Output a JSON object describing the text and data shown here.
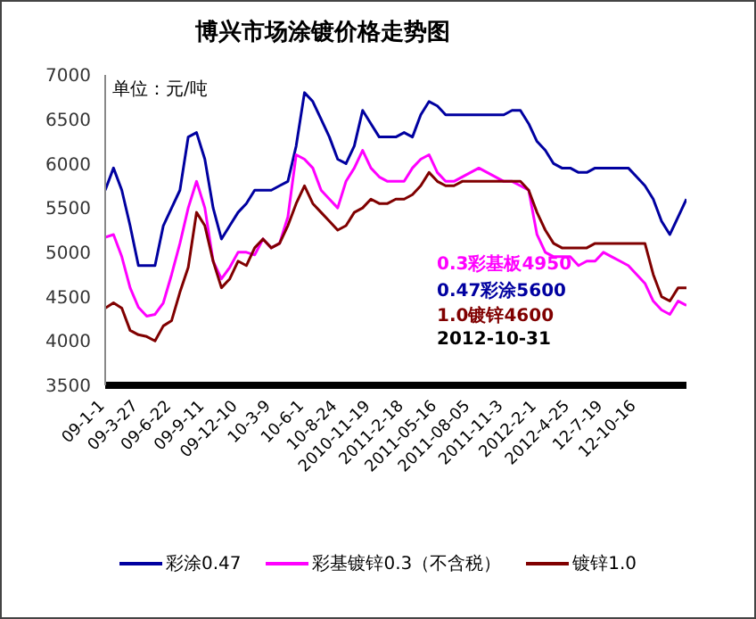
{
  "chart_data": {
    "type": "line",
    "title": "博兴市场涂镀价格走势图",
    "ylabel": "单位：元/吨",
    "categories": [
      "09-1-1",
      null,
      null,
      null,
      "09-3-27",
      null,
      null,
      null,
      "09-6-22",
      null,
      null,
      null,
      "09-9-11",
      null,
      null,
      null,
      "09-12-10",
      null,
      null,
      null,
      "10-3-9",
      null,
      null,
      null,
      "10-6-1",
      null,
      null,
      null,
      "10-8-24",
      null,
      null,
      null,
      "2010-11-19",
      null,
      null,
      null,
      "2011-2-18",
      null,
      null,
      null,
      "2011-05-16",
      null,
      null,
      null,
      "2011-08-05",
      null,
      null,
      null,
      "2011-11-3",
      null,
      null,
      null,
      "2012-2-1",
      null,
      null,
      null,
      "2012-4-25",
      null,
      null,
      null,
      "12-7-19",
      null,
      null,
      null,
      "12-10-16",
      null,
      null,
      null,
      null,
      null,
      null
    ],
    "series": [
      {
        "name": "彩涂0.47",
        "color": "#0000a0",
        "values": [
          5700,
          5950,
          5700,
          5300,
          4850,
          4850,
          4850,
          5300,
          5500,
          5700,
          6300,
          6350,
          6050,
          5500,
          5150,
          5300,
          5450,
          5550,
          5700,
          5700,
          5700,
          5750,
          5800,
          6200,
          6800,
          6700,
          6500,
          6300,
          6050,
          6000,
          6200,
          6600,
          6450,
          6300,
          6300,
          6300,
          6350,
          6300,
          6550,
          6700,
          6650,
          6550,
          6550,
          6550,
          6550,
          6550,
          6550,
          6550,
          6550,
          6600,
          6600,
          6450,
          6250,
          6150,
          6000,
          5950,
          5950,
          5900,
          5900,
          5950,
          5950,
          5950,
          5950,
          5950,
          5850,
          5750,
          5600,
          5350,
          5200,
          5400,
          5600
        ]
      },
      {
        "name": "彩基镀锌0.3（不含税）",
        "color": "#ff00ff",
        "values": [
          5170,
          5200,
          4950,
          4600,
          4380,
          4280,
          4300,
          4430,
          4750,
          5100,
          5500,
          5800,
          5500,
          4900,
          4700,
          4830,
          5000,
          5000,
          4970,
          5150,
          5050,
          5100,
          5400,
          6100,
          6050,
          5950,
          5700,
          5600,
          5500,
          5800,
          5950,
          6150,
          5950,
          5850,
          5800,
          5800,
          5800,
          5950,
          6050,
          6100,
          5900,
          5800,
          5800,
          5850,
          5900,
          5950,
          5900,
          5850,
          5800,
          5800,
          5750,
          5700,
          5200,
          5000,
          4950,
          4950,
          4950,
          4850,
          4900,
          4900,
          5000,
          4950,
          4900,
          4850,
          4750,
          4650,
          4450,
          4350,
          4300,
          4450,
          4400
        ]
      },
      {
        "name": "镀锌1.0",
        "color": "#800000",
        "values": [
          4370,
          4430,
          4370,
          4120,
          4070,
          4050,
          4000,
          4170,
          4230,
          4550,
          4830,
          5450,
          5300,
          4900,
          4600,
          4700,
          4900,
          4850,
          5050,
          5150,
          5050,
          5100,
          5300,
          5550,
          5750,
          5550,
          5450,
          5350,
          5250,
          5300,
          5450,
          5500,
          5600,
          5550,
          5550,
          5600,
          5600,
          5650,
          5750,
          5900,
          5800,
          5750,
          5750,
          5800,
          5800,
          5800,
          5800,
          5800,
          5800,
          5800,
          5800,
          5700,
          5450,
          5250,
          5100,
          5050,
          5050,
          5050,
          5050,
          5100,
          5100,
          5100,
          5100,
          5100,
          5100,
          5100,
          4750,
          4500,
          4450,
          4600,
          4600
        ]
      }
    ],
    "ylim": [
      3500,
      7000
    ],
    "yticks": [
      3500,
      4000,
      4500,
      5000,
      5500,
      6000,
      6500,
      7000
    ],
    "legend": "bottom",
    "marker": "none",
    "line_style": "solid",
    "annotations": [
      "0.3彩基板4950",
      "0.47彩涂5600",
      "1.0镀锌4600",
      "2012-10-31"
    ]
  }
}
